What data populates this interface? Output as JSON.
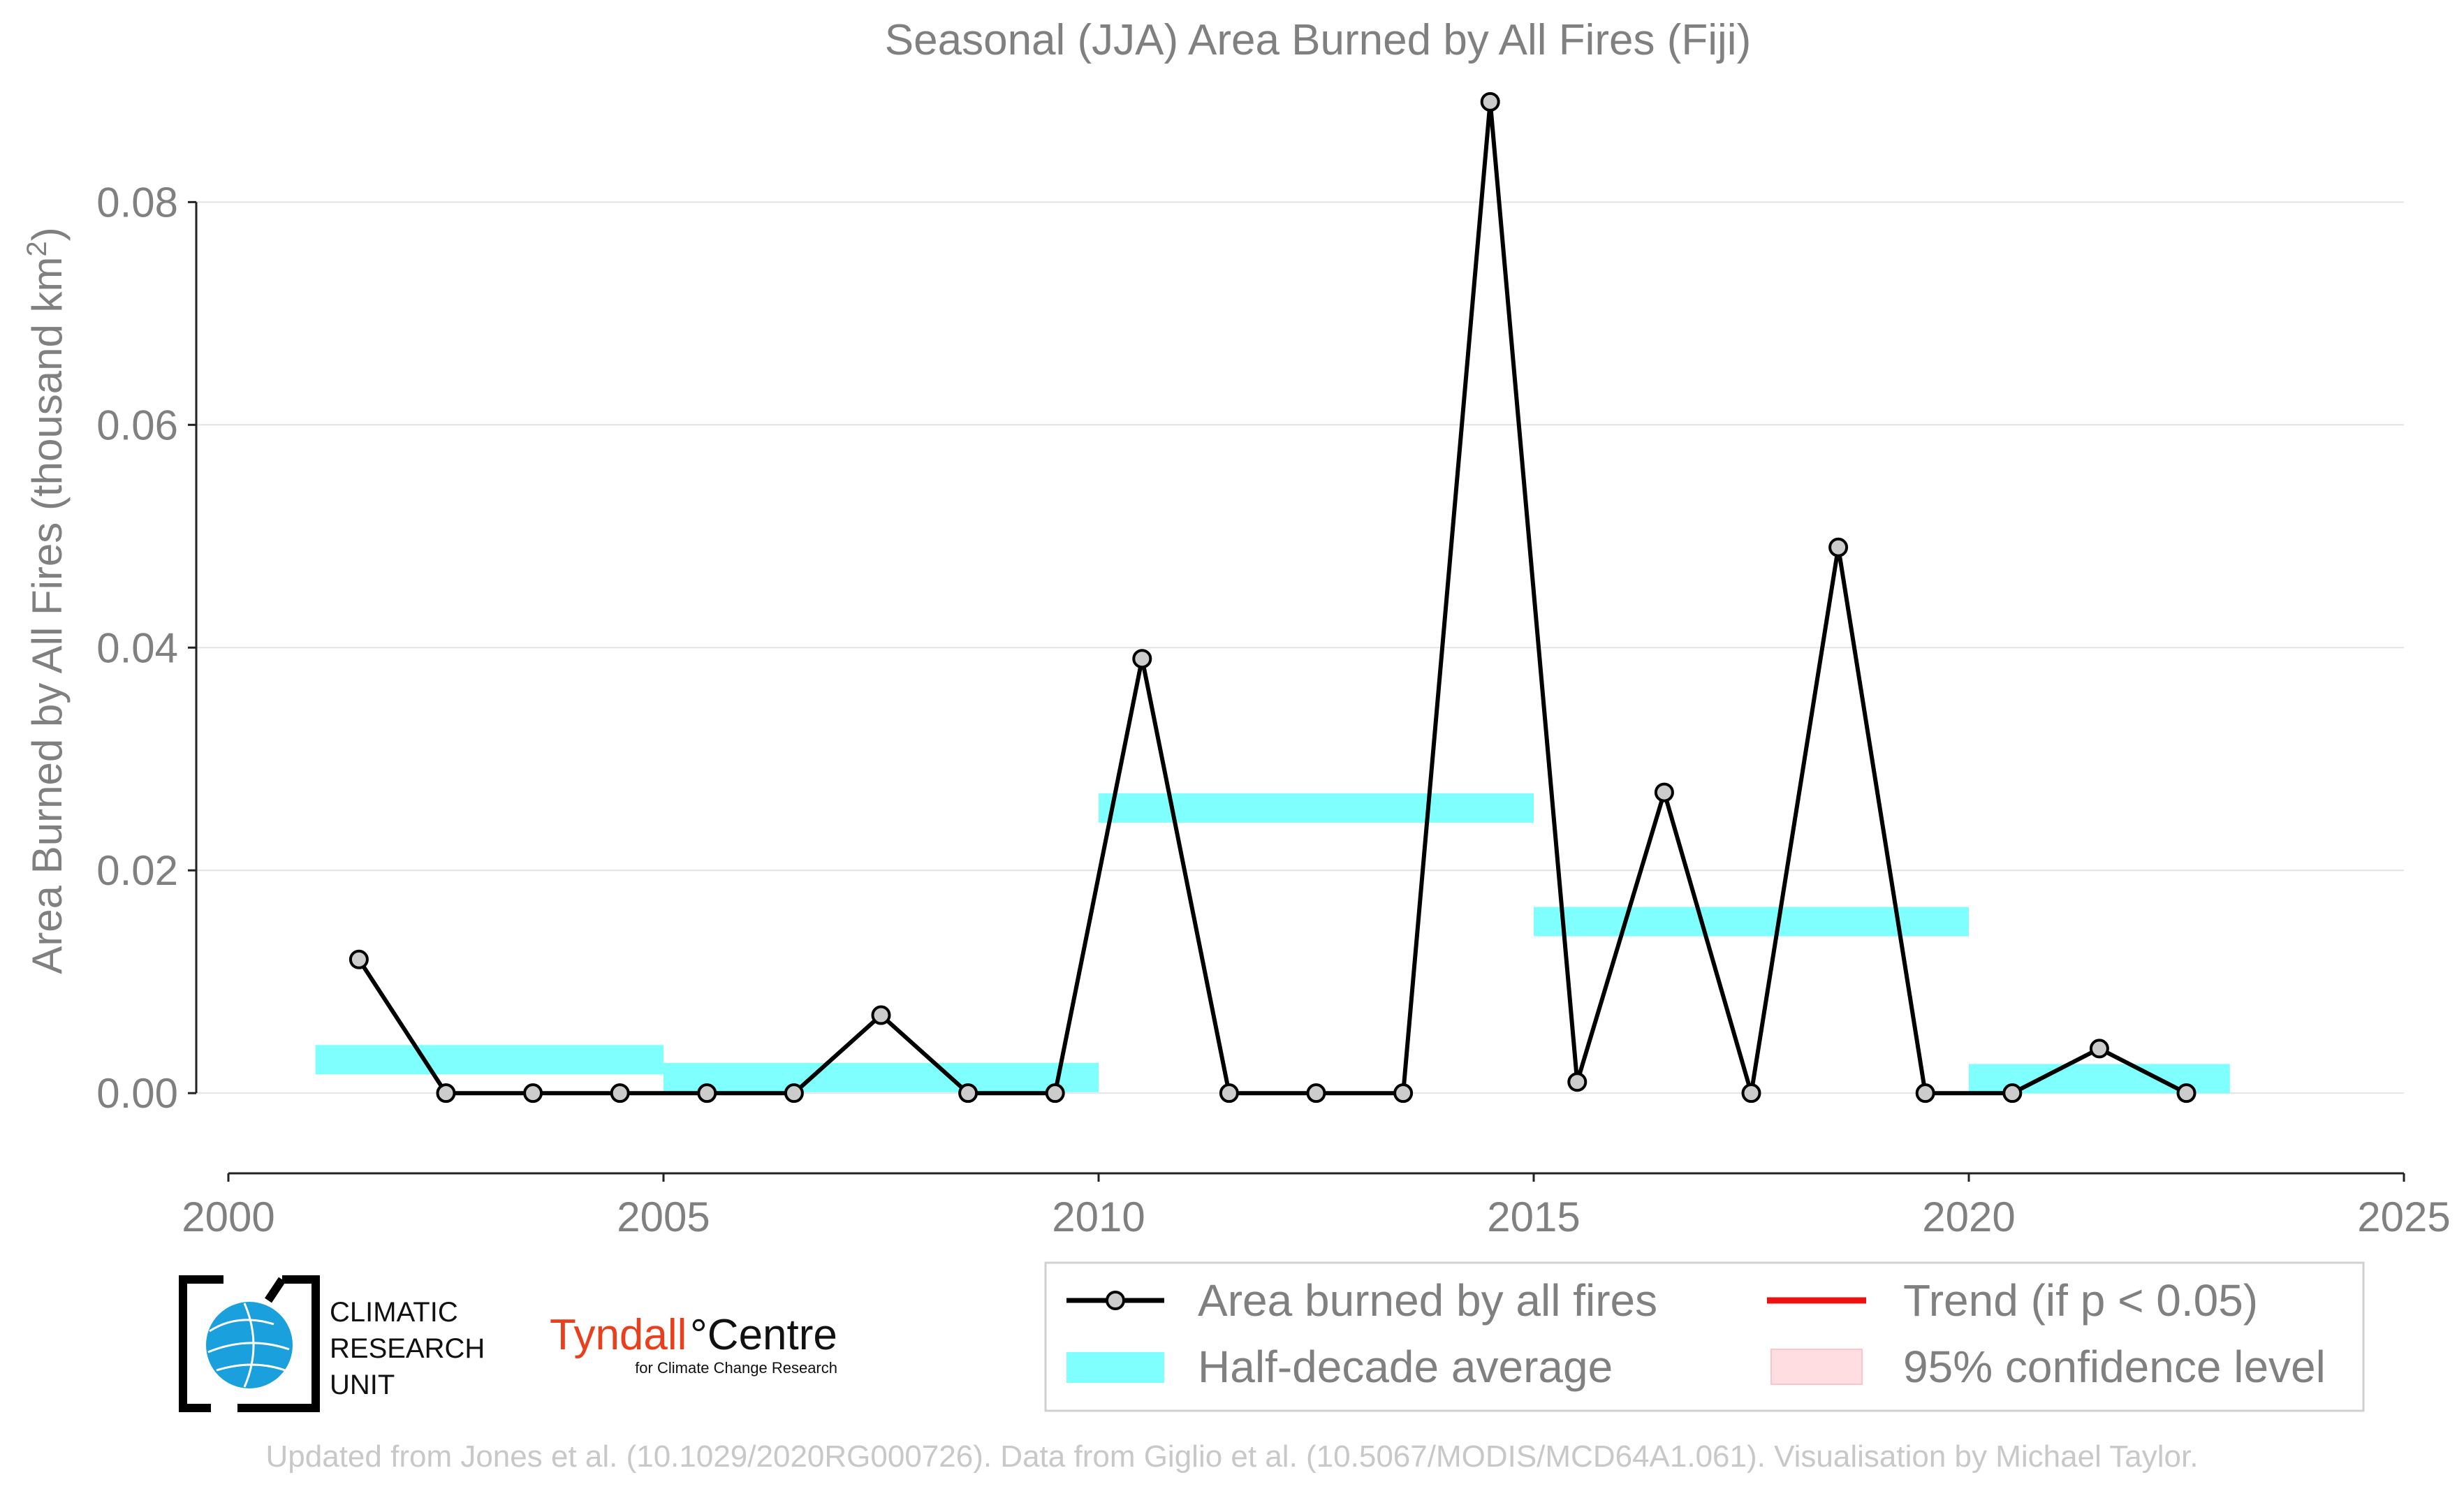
{
  "chart_data": {
    "type": "line",
    "title": "Seasonal (JJA) Area Burned by All Fires (Fiji)",
    "ylabel_main": "Area Burned by All Fires (thousand km",
    "ylabel_sup": "2",
    "ylabel_close": ")",
    "xlim": [
      2000,
      2025
    ],
    "ylim": [
      -0.0072,
      0.0925
    ],
    "x_ticks": [
      2000,
      2005,
      2010,
      2015,
      2020,
      2025
    ],
    "y_ticks": [
      0.0,
      0.02,
      0.04,
      0.06,
      0.08
    ],
    "y_tick_labels": [
      "0.00",
      "0.02",
      "0.04",
      "0.06",
      "0.08"
    ],
    "grid": "horizontal",
    "series": [
      {
        "name": "Area burned by all fires",
        "color": "#000000",
        "x": [
          2001.5,
          2002.5,
          2003.5,
          2004.5,
          2005.5,
          2006.5,
          2007.5,
          2008.5,
          2009.5,
          2010.5,
          2011.5,
          2012.5,
          2013.5,
          2014.5,
          2015.5,
          2016.5,
          2017.5,
          2018.5,
          2019.5,
          2020.5,
          2021.5,
          2022.5
        ],
        "values": [
          0.012,
          0.0,
          0.0,
          0.0,
          0.0,
          0.0,
          0.007,
          0.0,
          0.0,
          0.039,
          0.0,
          0.0,
          0.0,
          0.089,
          0.001,
          0.027,
          0.0,
          0.049,
          0.0,
          0.0,
          0.004,
          0.0
        ]
      }
    ],
    "half_decade_average": {
      "name": "Half-decade average",
      "color": "#80ffff",
      "segments": [
        {
          "x0": 2001,
          "x1": 2005,
          "value": 0.003
        },
        {
          "x0": 2005,
          "x1": 2010,
          "value": 0.0014
        },
        {
          "x0": 2010,
          "x1": 2015,
          "value": 0.0256
        },
        {
          "x0": 2015,
          "x1": 2020,
          "value": 0.0154
        },
        {
          "x0": 2020,
          "x1": 2023,
          "value": 0.0013
        }
      ]
    },
    "legend": {
      "placement": "bottom-right",
      "items": [
        {
          "label": "Area burned by all fires",
          "kind": "line-marker",
          "color": "#000000"
        },
        {
          "label": "Trend (if p < 0.05)",
          "kind": "line",
          "color": "#ee1111"
        },
        {
          "label": "Half-decade average",
          "kind": "band",
          "color": "#80ffff"
        },
        {
          "label": "95% confidence level",
          "kind": "patch",
          "color": "#ffdde0"
        }
      ]
    }
  },
  "logos": {
    "cru_line1": "CLIMATIC",
    "cru_line2": "RESEARCH",
    "cru_line3": "UNIT",
    "tyndall_main": "Tyndall",
    "tyndall_centre": "°Centre",
    "tyndall_sub": "for Climate Change Research"
  },
  "footer": "Updated from Jones et al. (10.1029/2020RG000726). Data from Giglio et al. (10.5067/MODIS/MCD64A1.061). Visualisation by Michael Taylor."
}
